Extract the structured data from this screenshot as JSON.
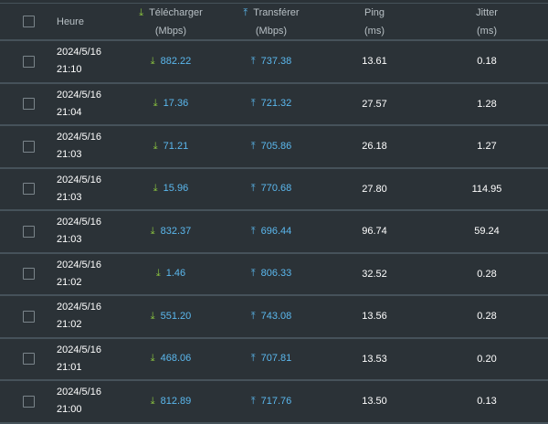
{
  "header": {
    "time": "Heure",
    "download": "Télécharger",
    "download_unit": "(Mbps)",
    "upload": "Transférer",
    "upload_unit": "(Mbps)",
    "ping": "Ping",
    "ping_unit": "(ms)",
    "jitter": "Jitter",
    "jitter_unit": "(ms)"
  },
  "icons": {
    "download": "arrow-down-icon",
    "upload": "arrow-up-icon",
    "download_color": "#8cc63f",
    "upload_color": "#5bb8ee"
  },
  "rows": [
    {
      "date": "2024/5/16",
      "time": "21:10",
      "download": "882.22",
      "upload": "737.38",
      "ping": "13.61",
      "jitter": "0.18"
    },
    {
      "date": "2024/5/16",
      "time": "21:04",
      "download": "17.36",
      "upload": "721.32",
      "ping": "27.57",
      "jitter": "1.28"
    },
    {
      "date": "2024/5/16",
      "time": "21:03",
      "download": "71.21",
      "upload": "705.86",
      "ping": "26.18",
      "jitter": "1.27"
    },
    {
      "date": "2024/5/16",
      "time": "21:03",
      "download": "15.96",
      "upload": "770.68",
      "ping": "27.80",
      "jitter": "114.95"
    },
    {
      "date": "2024/5/16",
      "time": "21:03",
      "download": "832.37",
      "upload": "696.44",
      "ping": "96.74",
      "jitter": "59.24"
    },
    {
      "date": "2024/5/16",
      "time": "21:02",
      "download": "1.46",
      "upload": "806.33",
      "ping": "32.52",
      "jitter": "0.28"
    },
    {
      "date": "2024/5/16",
      "time": "21:02",
      "download": "551.20",
      "upload": "743.08",
      "ping": "13.56",
      "jitter": "0.28"
    },
    {
      "date": "2024/5/16",
      "time": "21:01",
      "download": "468.06",
      "upload": "707.81",
      "ping": "13.53",
      "jitter": "0.20"
    },
    {
      "date": "2024/5/16",
      "time": "21:00",
      "download": "812.89",
      "upload": "717.76",
      "ping": "13.50",
      "jitter": "0.13"
    }
  ]
}
